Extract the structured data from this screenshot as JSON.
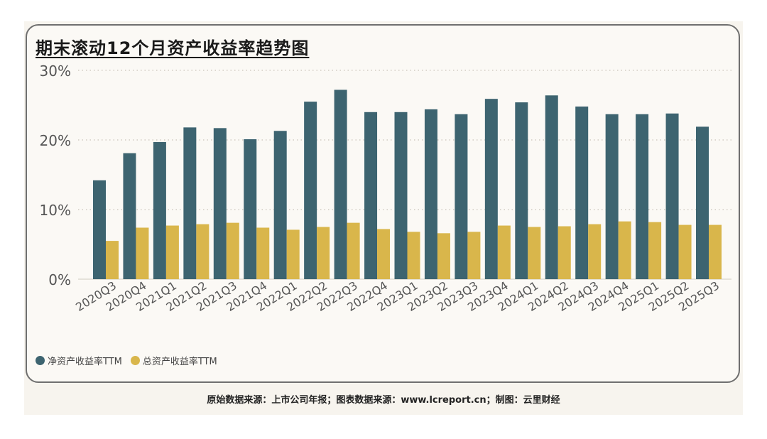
{
  "chart_data": {
    "type": "bar",
    "title": "期末滚动12个月资产收益率趋势图",
    "categories": [
      "2020Q3",
      "2020Q4",
      "2021Q1",
      "2021Q2",
      "2021Q3",
      "2021Q4",
      "2022Q1",
      "2022Q2",
      "2022Q3",
      "2022Q4",
      "2023Q1",
      "2023Q2",
      "2023Q3",
      "2023Q4",
      "2024Q1",
      "2024Q2",
      "2024Q3",
      "2024Q4",
      "2025Q1",
      "2025Q2",
      "2025Q3"
    ],
    "series": [
      {
        "name": "净资产收益率TTM",
        "color": "#3d6470",
        "values": [
          14.2,
          18.1,
          19.7,
          21.8,
          21.7,
          20.1,
          21.3,
          25.5,
          27.2,
          24.0,
          24.0,
          24.4,
          23.7,
          25.9,
          25.4,
          26.4,
          24.8,
          23.7,
          23.7,
          23.8,
          21.9
        ]
      },
      {
        "name": "总资产收益率TTM",
        "color": "#d9b64b",
        "values": [
          5.5,
          7.4,
          7.7,
          7.9,
          8.1,
          7.4,
          7.1,
          7.5,
          8.1,
          7.2,
          6.8,
          6.6,
          6.8,
          7.7,
          7.5,
          7.6,
          7.9,
          8.3,
          8.2,
          7.8,
          7.8
        ]
      }
    ],
    "xlabel": "",
    "ylabel": "",
    "ylim": [
      0,
      30
    ],
    "yticks": [
      0,
      10,
      20,
      30
    ],
    "ytick_labels": [
      "0%",
      "10%",
      "20%",
      "30%"
    ],
    "grid": true,
    "legend": "bottom-left"
  },
  "footer": {
    "source_note": "原始数据来源：上市公司年报；图表数据来源：www.lcreport.cn；制图：云里财经"
  }
}
